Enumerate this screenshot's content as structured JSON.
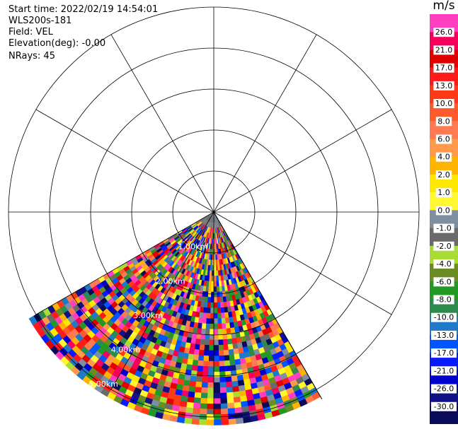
{
  "header": {
    "start_time": "Start time: 2022/02/19 14:54:01",
    "site": "WLS200s-181",
    "field": "Field: VEL",
    "elevation": "Elevation(deg): -0.00",
    "nrays": "NRays: 45"
  },
  "colorbar": {
    "unit": "m/s",
    "ticks": [
      "26.0",
      "21.0",
      "17.0",
      "13.0",
      "10.0",
      "8.0",
      "6.0",
      "4.0",
      "2.0",
      "1.0",
      "0.0",
      "-1.0",
      "-2.0",
      "-4.0",
      "-6.0",
      "-8.0",
      "-10.0",
      "-13.0",
      "-17.0",
      "-21.0",
      "-26.0",
      "-30.0"
    ],
    "colors": [
      "#ff3fbf",
      "#f5005a",
      "#e10000",
      "#ff1a1a",
      "#ff3a17",
      "#ff5a2d",
      "#ff7a50",
      "#ff9a4a",
      "#ffb400",
      "#ffe800",
      "#fff830",
      "#7f8fa0",
      "#6a6a6a",
      "#aadd33",
      "#6a8c23",
      "#229922",
      "#2d8a4d",
      "#1f79c8",
      "#0055ff",
      "#0a1aff",
      "#0000cc",
      "#111188",
      "#0a0a5a"
    ]
  },
  "chart_data": {
    "type": "heatmap",
    "projection": "polar PPI",
    "field": "VEL",
    "units": "m/s",
    "range_rings_km": [
      1,
      2,
      3,
      4,
      5
    ],
    "range_ring_labels": [
      "1.00km",
      "2.00km",
      "3.00km",
      "4.00km",
      "5.00km"
    ],
    "spoke_interval_deg": 30,
    "sector_azimuth_deg": [
      150,
      240
    ],
    "nrays": 45,
    "max_range_km": 5.2,
    "value_range": [
      -30,
      26
    ]
  }
}
